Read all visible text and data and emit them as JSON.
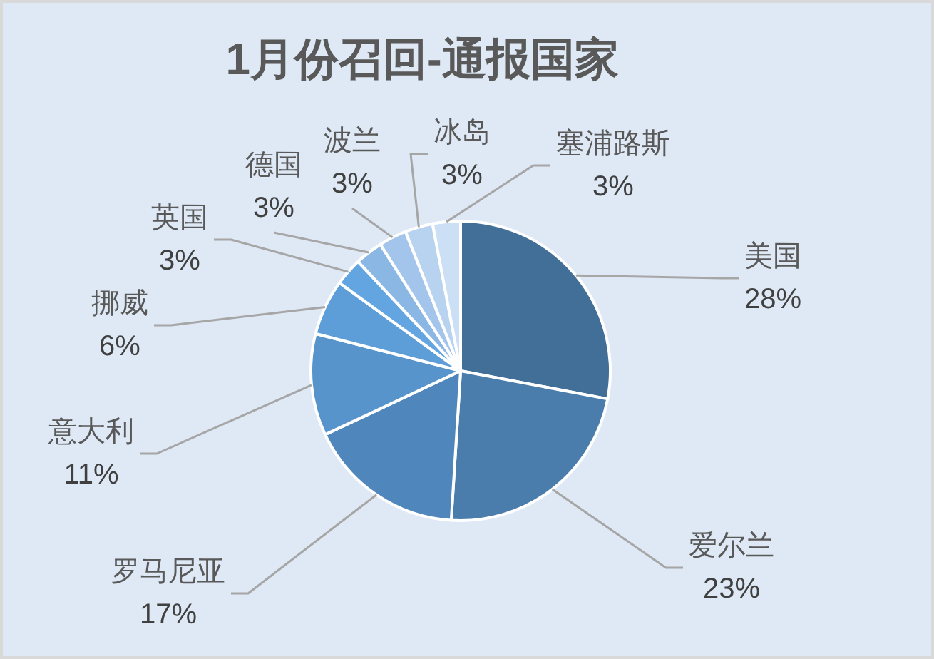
{
  "chart_data": {
    "type": "pie",
    "title": "1月份召回-通报国家",
    "categories": [
      "美国",
      "爱尔兰",
      "罗马尼亚",
      "意大利",
      "挪威",
      "英国",
      "德国",
      "波兰",
      "冰岛",
      "塞浦路斯"
    ],
    "values": [
      28,
      23,
      17,
      11,
      6,
      3,
      3,
      3,
      3,
      3
    ],
    "value_labels": [
      "28%",
      "23%",
      "17%",
      "11%",
      "6%",
      "3%",
      "3%",
      "3%",
      "3%",
      "3%"
    ],
    "colors": [
      "#426f98",
      "#4a7dab",
      "#4f87bd",
      "#5894cc",
      "#5d9dd8",
      "#62a5e1",
      "#8bb7e5",
      "#a3c5ec",
      "#b8d3f0",
      "#cbdff5"
    ]
  }
}
